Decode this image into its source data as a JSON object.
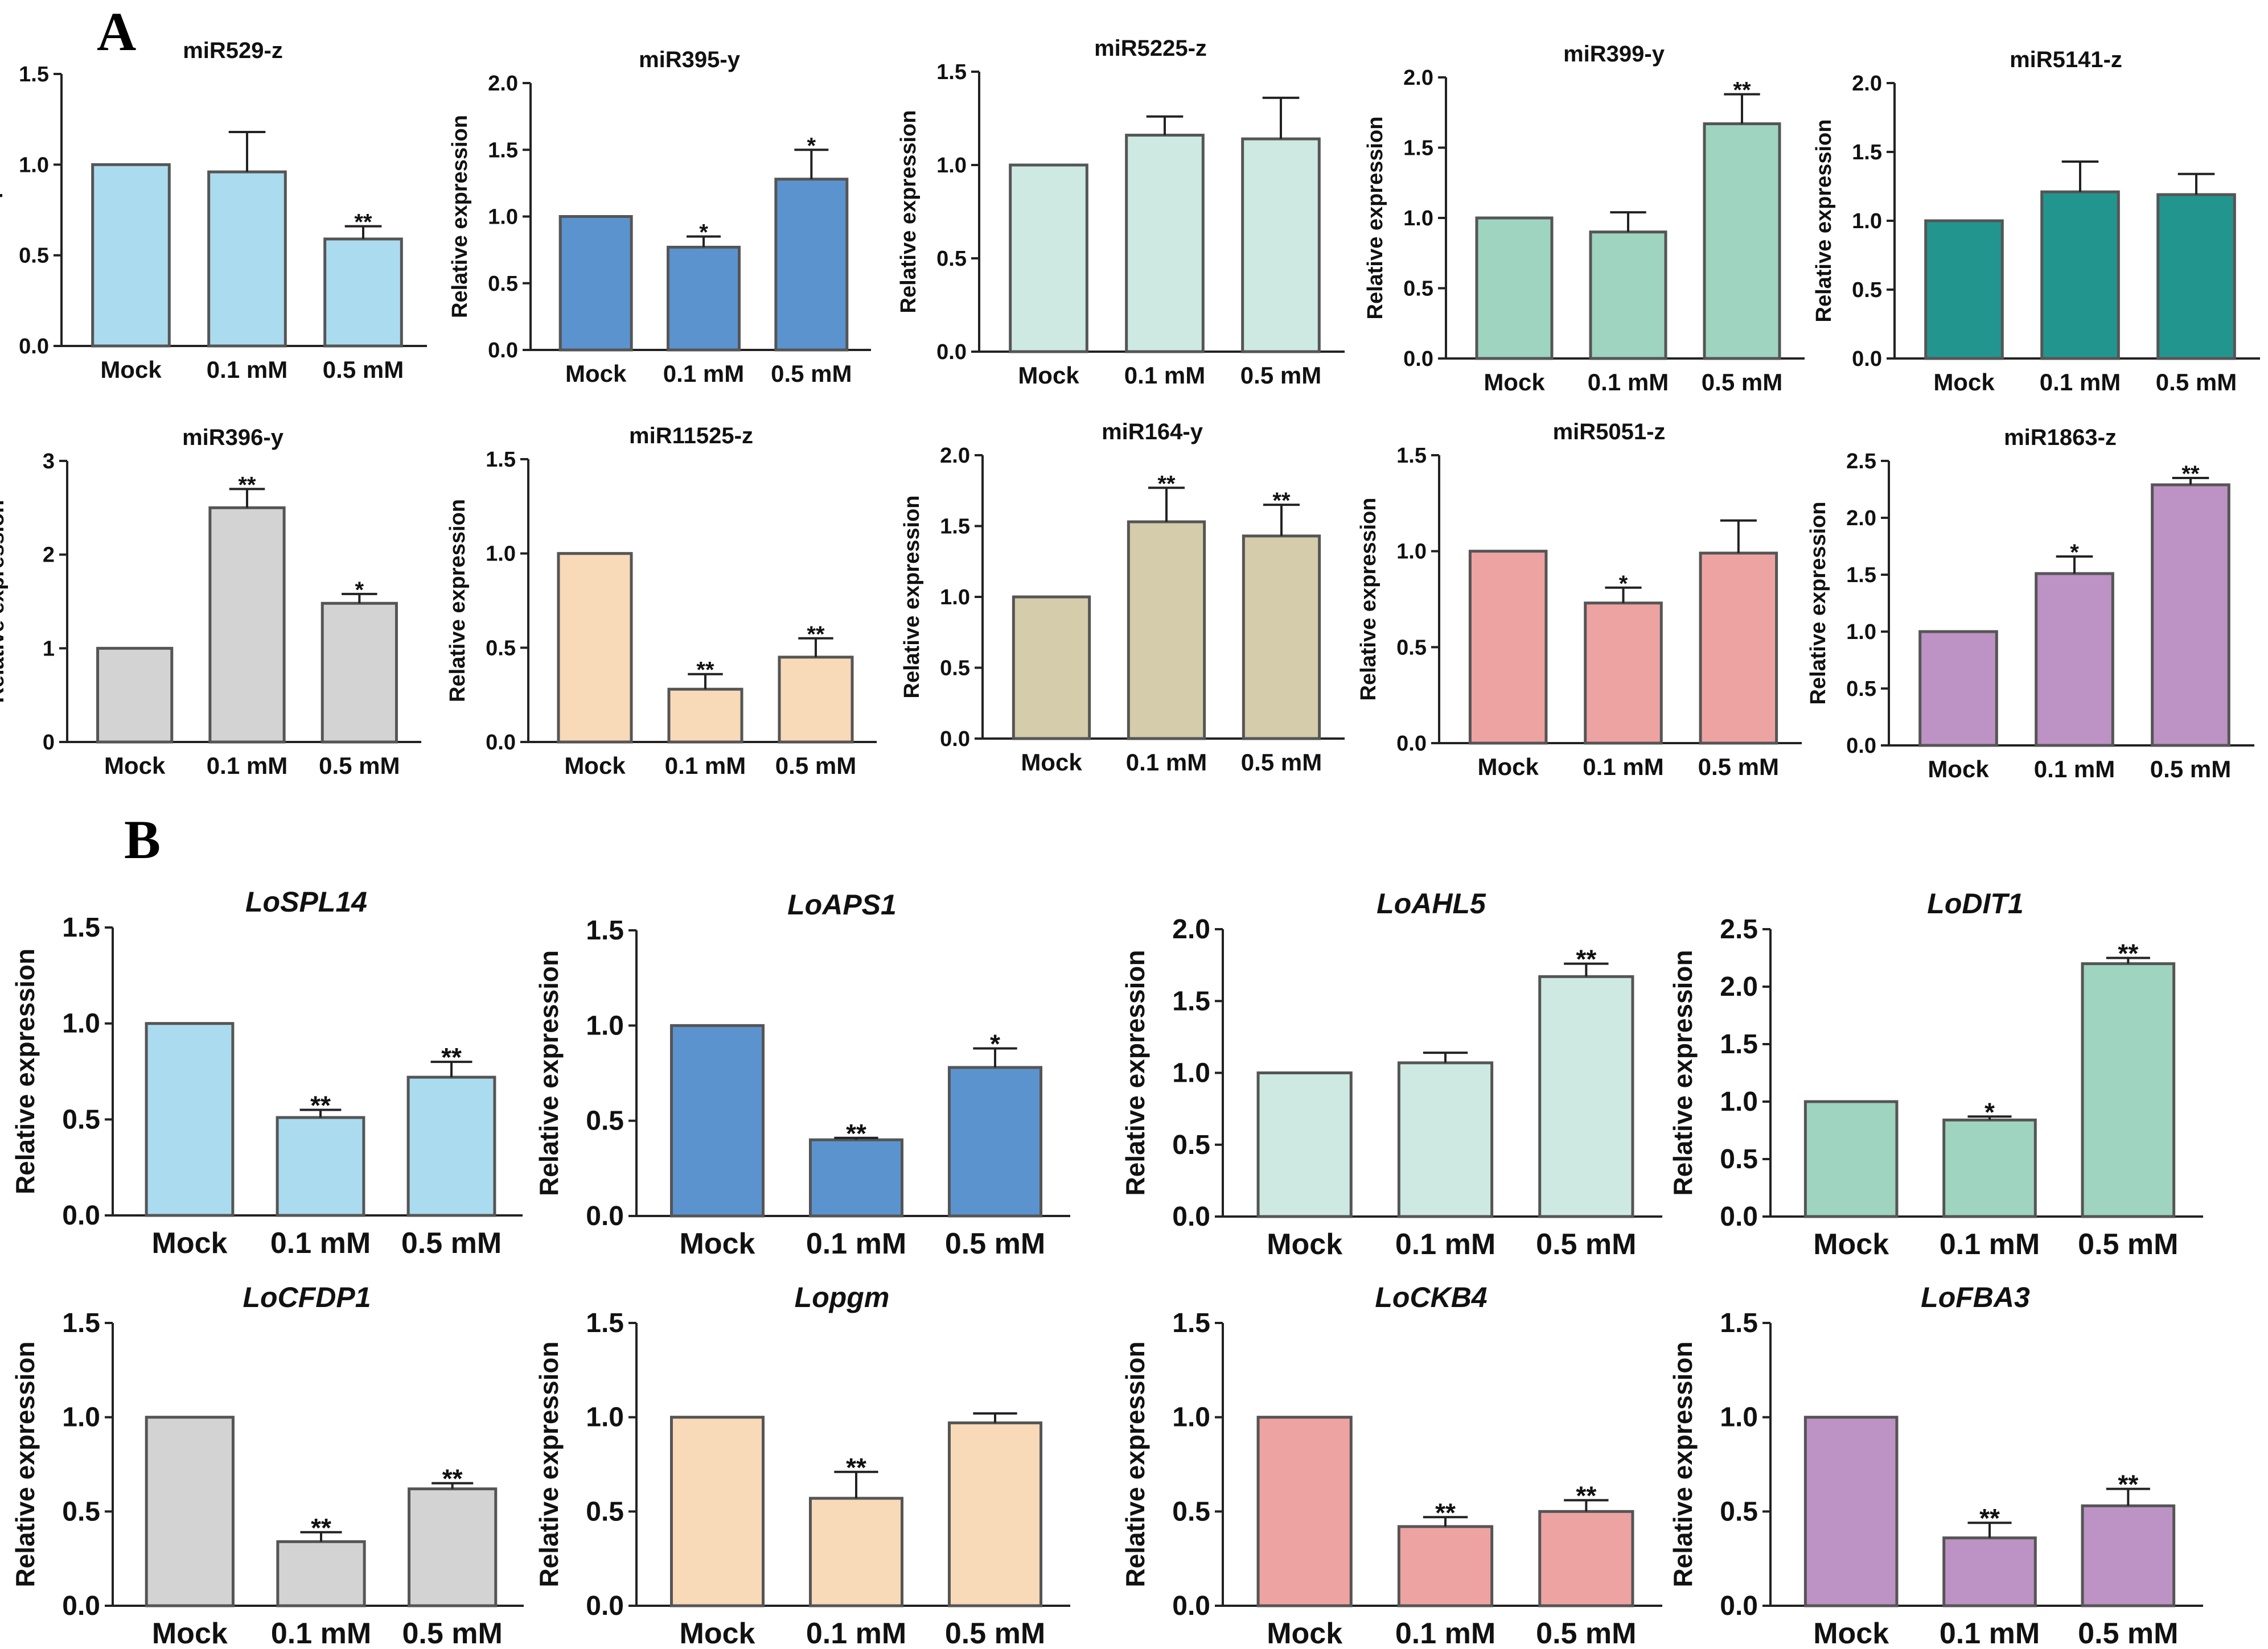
{
  "panels": {
    "a": "A",
    "b": "B"
  },
  "colors": {
    "light_blue": "#abdbee",
    "blue": "#5b93cf",
    "pale_teal": "#cde9e2",
    "mint": "#9ed4c0",
    "teal": "#23958f",
    "grey": "#d3d3d3",
    "peach": "#f8d9b8",
    "khaki": "#d4ccaa",
    "pink": "#eea3a3",
    "lavender": "#bd92c4"
  },
  "chart_data": [
    {
      "type": "bar",
      "panel": "A",
      "title": "miR529-z",
      "ylabel": "Relative expression",
      "categories": [
        "Mock",
        "0.1 mM",
        "0.5 mM"
      ],
      "values": [
        1.0,
        0.96,
        0.59
      ],
      "errors": [
        0,
        0.22,
        0.07
      ],
      "significance": [
        "",
        "",
        "**"
      ],
      "ylim": [
        0,
        1.5
      ],
      "yticks": [
        "0.0",
        "0.5",
        "1.0",
        "1.5"
      ],
      "color": "#abdbee"
    },
    {
      "type": "bar",
      "panel": "A",
      "title": "miR395-y",
      "ylabel": "Relative expression",
      "categories": [
        "Mock",
        "0.1 mM",
        "0.5 mM"
      ],
      "values": [
        1.0,
        0.77,
        1.28
      ],
      "errors": [
        0,
        0.08,
        0.22
      ],
      "significance": [
        "",
        "*",
        "*"
      ],
      "ylim": [
        0,
        2.0
      ],
      "yticks": [
        "0.0",
        "0.5",
        "1.0",
        "1.5",
        "2.0"
      ],
      "color": "#5b93cf"
    },
    {
      "type": "bar",
      "panel": "A",
      "title": "miR5225-z",
      "ylabel": "Relative expression",
      "categories": [
        "Mock",
        "0.1 mM",
        "0.5 mM"
      ],
      "values": [
        1.0,
        1.16,
        1.14
      ],
      "errors": [
        0,
        0.1,
        0.22
      ],
      "significance": [
        "",
        "",
        ""
      ],
      "ylim": [
        0,
        1.5
      ],
      "yticks": [
        "0.0",
        "0.5",
        "1.0",
        "1.5"
      ],
      "color": "#cde9e2"
    },
    {
      "type": "bar",
      "panel": "A",
      "title": "miR399-y",
      "ylabel": "Relative expression",
      "categories": [
        "Mock",
        "0.1 mM",
        "0.5 mM"
      ],
      "values": [
        1.0,
        0.9,
        1.67
      ],
      "errors": [
        0,
        0.14,
        0.21
      ],
      "significance": [
        "",
        "",
        "**"
      ],
      "ylim": [
        0,
        2.0
      ],
      "yticks": [
        "0.0",
        "0.5",
        "1.0",
        "1.5",
        "2.0"
      ],
      "color": "#9ed4c0"
    },
    {
      "type": "bar",
      "panel": "A",
      "title": "miR5141-z",
      "ylabel": "Relative expression",
      "categories": [
        "Mock",
        "0.1 mM",
        "0.5 mM"
      ],
      "values": [
        1.0,
        1.21,
        1.19
      ],
      "errors": [
        0,
        0.22,
        0.15
      ],
      "significance": [
        "",
        "",
        ""
      ],
      "ylim": [
        0,
        2.0
      ],
      "yticks": [
        "0.0",
        "0.5",
        "1.0",
        "1.5",
        "2.0"
      ],
      "color": "#23958f"
    },
    {
      "type": "bar",
      "panel": "A",
      "title": "miR396-y",
      "ylabel": "Relative expression",
      "categories": [
        "Mock",
        "0.1 mM",
        "0.5 mM"
      ],
      "values": [
        1.0,
        2.5,
        1.48
      ],
      "errors": [
        0,
        0.2,
        0.1
      ],
      "significance": [
        "",
        "**",
        "*"
      ],
      "ylim": [
        0,
        3
      ],
      "yticks": [
        "0",
        "1",
        "2",
        "3"
      ],
      "color": "#d3d3d3"
    },
    {
      "type": "bar",
      "panel": "A",
      "title": "miR11525-z",
      "ylabel": "Relative expression",
      "categories": [
        "Mock",
        "0.1 mM",
        "0.5 mM"
      ],
      "values": [
        1.0,
        0.28,
        0.45
      ],
      "errors": [
        0,
        0.08,
        0.1
      ],
      "significance": [
        "",
        "**",
        "**"
      ],
      "ylim": [
        0,
        1.5
      ],
      "yticks": [
        "0.0",
        "0.5",
        "1.0",
        "1.5"
      ],
      "color": "#f8d9b8"
    },
    {
      "type": "bar",
      "panel": "A",
      "title": "miR164-y",
      "ylabel": "Relative expression",
      "categories": [
        "Mock",
        "0.1 mM",
        "0.5 mM"
      ],
      "values": [
        1.0,
        1.53,
        1.43
      ],
      "errors": [
        0,
        0.24,
        0.22
      ],
      "significance": [
        "",
        "**",
        "**"
      ],
      "ylim": [
        0,
        2.0
      ],
      "yticks": [
        "0.0",
        "0.5",
        "1.0",
        "1.5",
        "2.0"
      ],
      "color": "#d4ccaa"
    },
    {
      "type": "bar",
      "panel": "A",
      "title": "miR5051-z",
      "ylabel": "Relative expression",
      "categories": [
        "Mock",
        "0.1 mM",
        "0.5 mM"
      ],
      "values": [
        1.0,
        0.73,
        0.99
      ],
      "errors": [
        0,
        0.08,
        0.17
      ],
      "significance": [
        "",
        "*",
        ""
      ],
      "ylim": [
        0,
        1.5
      ],
      "yticks": [
        "0.0",
        "0.5",
        "1.0",
        "1.5"
      ],
      "color": "#eea3a3"
    },
    {
      "type": "bar",
      "panel": "A",
      "title": "miR1863-z",
      "ylabel": "Relative expression",
      "categories": [
        "Mock",
        "0.1 mM",
        "0.5 mM"
      ],
      "values": [
        1.0,
        1.51,
        2.29
      ],
      "errors": [
        0,
        0.15,
        0.06
      ],
      "significance": [
        "",
        "*",
        "**"
      ],
      "ylim": [
        0,
        2.5
      ],
      "yticks": [
        "0.0",
        "0.5",
        "1.0",
        "1.5",
        "2.0",
        "2.5"
      ],
      "color": "#bd92c4"
    },
    {
      "type": "bar",
      "panel": "B",
      "title": "LoSPL14",
      "ylabel": "Relative expression",
      "categories": [
        "Mock",
        "0.1 mM",
        "0.5 mM"
      ],
      "values": [
        1.0,
        0.51,
        0.72
      ],
      "errors": [
        0,
        0.04,
        0.08
      ],
      "significance": [
        "",
        "**",
        "**"
      ],
      "ylim": [
        0,
        1.5
      ],
      "yticks": [
        "0.0",
        "0.5",
        "1.0",
        "1.5"
      ],
      "color": "#abdbee"
    },
    {
      "type": "bar",
      "panel": "B",
      "title": "LoAPS1",
      "ylabel": "Relative expression",
      "categories": [
        "Mock",
        "0.1 mM",
        "0.5 mM"
      ],
      "values": [
        1.0,
        0.4,
        0.78
      ],
      "errors": [
        0,
        0.01,
        0.1
      ],
      "significance": [
        "",
        "**",
        "*"
      ],
      "ylim": [
        0,
        1.5
      ],
      "yticks": [
        "0.0",
        "0.5",
        "1.0",
        "1.5"
      ],
      "color": "#5b93cf"
    },
    {
      "type": "bar",
      "panel": "B",
      "title": "LoAHL5",
      "ylabel": "Relative expression",
      "categories": [
        "Mock",
        "0.1 mM",
        "0.5 mM"
      ],
      "values": [
        1.0,
        1.07,
        1.67
      ],
      "errors": [
        0,
        0.07,
        0.09
      ],
      "significance": [
        "",
        "",
        "**"
      ],
      "ylim": [
        0,
        2.0
      ],
      "yticks": [
        "0.0",
        "0.5",
        "1.0",
        "1.5",
        "2.0"
      ],
      "color": "#cde9e2"
    },
    {
      "type": "bar",
      "panel": "B",
      "title": "LoDIT1",
      "ylabel": "Relative expression",
      "categories": [
        "Mock",
        "0.1 mM",
        "0.5 mM"
      ],
      "values": [
        1.0,
        0.84,
        2.2
      ],
      "errors": [
        0,
        0.03,
        0.05
      ],
      "significance": [
        "",
        "*",
        "**"
      ],
      "ylim": [
        0,
        2.5
      ],
      "yticks": [
        "0.0",
        "0.5",
        "1.0",
        "1.5",
        "2.0",
        "2.5"
      ],
      "color": "#9ed4c0"
    },
    {
      "type": "bar",
      "panel": "B",
      "title": "LoCFDP1",
      "ylabel": "Relative expression",
      "categories": [
        "Mock",
        "0.1 mM",
        "0.5 mM"
      ],
      "values": [
        1.0,
        0.34,
        0.62
      ],
      "errors": [
        0,
        0.05,
        0.03
      ],
      "significance": [
        "",
        "**",
        "**"
      ],
      "ylim": [
        0,
        1.5
      ],
      "yticks": [
        "0.0",
        "0.5",
        "1.0",
        "1.5"
      ],
      "color": "#d3d3d3"
    },
    {
      "type": "bar",
      "panel": "B",
      "title": "Lopgm",
      "ylabel": "Relative expression",
      "categories": [
        "Mock",
        "0.1 mM",
        "0.5 mM"
      ],
      "values": [
        1.0,
        0.57,
        0.97
      ],
      "errors": [
        0,
        0.14,
        0.05
      ],
      "significance": [
        "",
        "**",
        ""
      ],
      "ylim": [
        0,
        1.5
      ],
      "yticks": [
        "0.0",
        "0.5",
        "1.0",
        "1.5"
      ],
      "color": "#f8d9b8"
    },
    {
      "type": "bar",
      "panel": "B",
      "title": "LoCKB4",
      "ylabel": "Relative expression",
      "categories": [
        "Mock",
        "0.1 mM",
        "0.5 mM"
      ],
      "values": [
        1.0,
        0.42,
        0.5
      ],
      "errors": [
        0,
        0.05,
        0.06
      ],
      "significance": [
        "",
        "**",
        "**"
      ],
      "ylim": [
        0,
        1.5
      ],
      "yticks": [
        "0.0",
        "0.5",
        "1.0",
        "1.5"
      ],
      "color": "#eea3a3"
    },
    {
      "type": "bar",
      "panel": "B",
      "title": "LoFBA3",
      "ylabel": "Relative expression",
      "categories": [
        "Mock",
        "0.1 mM",
        "0.5 mM"
      ],
      "values": [
        1.0,
        0.36,
        0.53
      ],
      "errors": [
        0,
        0.08,
        0.09
      ],
      "significance": [
        "",
        "**",
        "**"
      ],
      "ylim": [
        0,
        1.5
      ],
      "yticks": [
        "0.0",
        "0.5",
        "1.0",
        "1.5"
      ],
      "color": "#bd92c4"
    }
  ]
}
